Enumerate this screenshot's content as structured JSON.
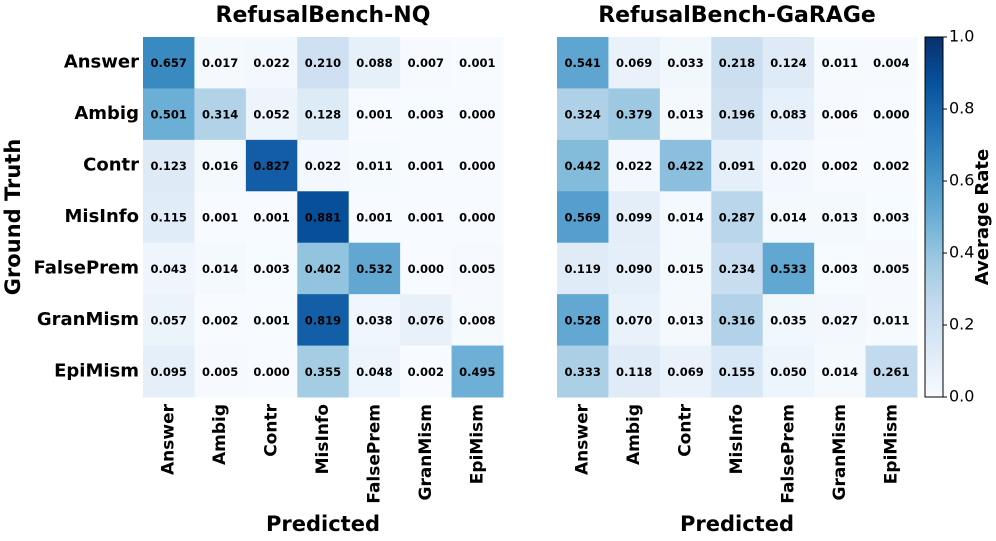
{
  "chart_data": [
    {
      "type": "heatmap",
      "title": "RefusalBench-NQ",
      "xlabel": "Predicted",
      "ylabel": "Ground Truth",
      "categories": [
        "Answer",
        "Ambig",
        "Contr",
        "MisInfo",
        "FalsePrem",
        "GranMism",
        "EpiMism"
      ],
      "rows": [
        "Answer",
        "Ambig",
        "Contr",
        "MisInfo",
        "FalsePrem",
        "GranMism",
        "EpiMism"
      ],
      "colormap": "Blues",
      "zlim": [
        0,
        1
      ],
      "values": [
        [
          0.657,
          0.017,
          0.022,
          0.21,
          0.088,
          0.007,
          0.001
        ],
        [
          0.501,
          0.314,
          0.052,
          0.128,
          0.001,
          0.003,
          0.0
        ],
        [
          0.123,
          0.016,
          0.827,
          0.022,
          0.011,
          0.001,
          0.0
        ],
        [
          0.115,
          0.001,
          0.001,
          0.881,
          0.001,
          0.001,
          0.0
        ],
        [
          0.043,
          0.014,
          0.003,
          0.402,
          0.532,
          0.0,
          0.005
        ],
        [
          0.057,
          0.002,
          0.001,
          0.819,
          0.038,
          0.076,
          0.008
        ],
        [
          0.095,
          0.005,
          0.0,
          0.355,
          0.048,
          0.002,
          0.495
        ]
      ],
      "value_labels": [
        [
          "0.657",
          "0.017",
          "0.022",
          "0.210",
          "0.088",
          "0.007",
          "0.001"
        ],
        [
          "0.501",
          "0.314",
          "0.052",
          "0.128",
          "0.001",
          "0.003",
          "0.000"
        ],
        [
          "0.123",
          "0.016",
          "0.827",
          "0.022",
          "0.011",
          "0.001",
          "0.000"
        ],
        [
          "0.115",
          "0.001",
          "0.001",
          "0.881",
          "0.001",
          "0.001",
          "0.000"
        ],
        [
          "0.043",
          "0.014",
          "0.003",
          "0.402",
          "0.532",
          "0.000",
          "0.005"
        ],
        [
          "0.057",
          "0.002",
          "0.001",
          "0.819",
          "0.038",
          "0.076",
          "0.008"
        ],
        [
          "0.095",
          "0.005",
          "0.000",
          "0.355",
          "0.048",
          "0.002",
          "0.495"
        ]
      ]
    },
    {
      "type": "heatmap",
      "title": "RefusalBench-GaRAGe",
      "xlabel": "Predicted",
      "categories": [
        "Answer",
        "Ambig",
        "Contr",
        "MisInfo",
        "FalsePrem",
        "GranMism",
        "EpiMism"
      ],
      "colormap": "Blues",
      "zlim": [
        0,
        1
      ],
      "values": [
        [
          0.541,
          0.069,
          0.033,
          0.218,
          0.124,
          0.011,
          0.004
        ],
        [
          0.324,
          0.379,
          0.013,
          0.196,
          0.083,
          0.006,
          0.0
        ],
        [
          0.442,
          0.022,
          0.422,
          0.091,
          0.02,
          0.002,
          0.002
        ],
        [
          0.569,
          0.099,
          0.014,
          0.287,
          0.014,
          0.013,
          0.003
        ],
        [
          0.119,
          0.09,
          0.015,
          0.234,
          0.533,
          0.003,
          0.005
        ],
        [
          0.528,
          0.07,
          0.013,
          0.316,
          0.035,
          0.027,
          0.011
        ],
        [
          0.333,
          0.118,
          0.069,
          0.155,
          0.05,
          0.014,
          0.261
        ]
      ],
      "value_labels": [
        [
          "0.541",
          "0.069",
          "0.033",
          "0.218",
          "0.124",
          "0.011",
          "0.004"
        ],
        [
          "0.324",
          "0.379",
          "0.013",
          "0.196",
          "0.083",
          "0.006",
          "0.000"
        ],
        [
          "0.442",
          "0.022",
          "0.422",
          "0.091",
          "0.020",
          "0.002",
          "0.002"
        ],
        [
          "0.569",
          "0.099",
          "0.014",
          "0.287",
          "0.014",
          "0.013",
          "0.003"
        ],
        [
          "0.119",
          "0.090",
          "0.015",
          "0.234",
          "0.533",
          "0.003",
          "0.005"
        ],
        [
          "0.528",
          "0.070",
          "0.013",
          "0.316",
          "0.035",
          "0.027",
          "0.011"
        ],
        [
          "0.333",
          "0.118",
          "0.069",
          "0.155",
          "0.050",
          "0.014",
          "0.261"
        ]
      ],
      "colorbar": {
        "label": "Average Rate",
        "lim": [
          0,
          1
        ],
        "ticks": [
          {
            "value": 0,
            "label": "0.0"
          },
          0.2,
          0.4,
          0.6,
          0.8,
          {
            "value": 1,
            "label": "1.0"
          }
        ]
      }
    }
  ]
}
